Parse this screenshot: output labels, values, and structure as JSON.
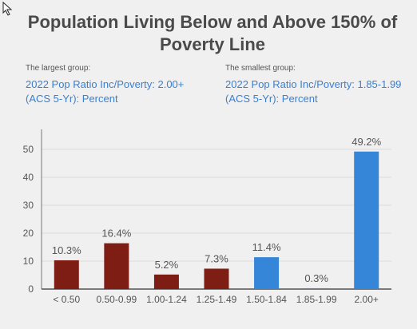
{
  "title": "Population Living Below and Above 150% of Poverty Line",
  "callouts": {
    "largest": {
      "label": "The largest group:",
      "value": "2022 Pop Ratio Inc/Poverty: 2.00+ (ACS 5-Yr): Percent"
    },
    "smallest": {
      "label": "The smallest group:",
      "value": "2022 Pop Ratio Inc/Poverty: 1.85-1.99 (ACS 5-Yr): Percent"
    }
  },
  "chart_data": {
    "type": "bar",
    "categories": [
      "< 0.50",
      "0.50-0.99",
      "1.00-1.24",
      "1.25-1.49",
      "1.50-1.84",
      "1.85-1.99",
      "2.00+"
    ],
    "values": [
      10.3,
      16.4,
      5.2,
      7.3,
      11.4,
      0.3,
      49.2
    ],
    "labels": [
      "10.3%",
      "16.4%",
      "5.2%",
      "7.3%",
      "11.4%",
      "0.3%",
      "49.2%"
    ],
    "colors": [
      "#7d1d14",
      "#7d1d14",
      "#7d1d14",
      "#7d1d14",
      "#3585d8",
      "#3585d8",
      "#3585d8"
    ],
    "yticks": [
      0,
      10,
      20,
      30,
      40,
      50
    ],
    "ylim": [
      0,
      56
    ],
    "grid": true,
    "title": "Population Living Below and Above 150% of Poverty Line",
    "xlabel": "",
    "ylabel": ""
  }
}
